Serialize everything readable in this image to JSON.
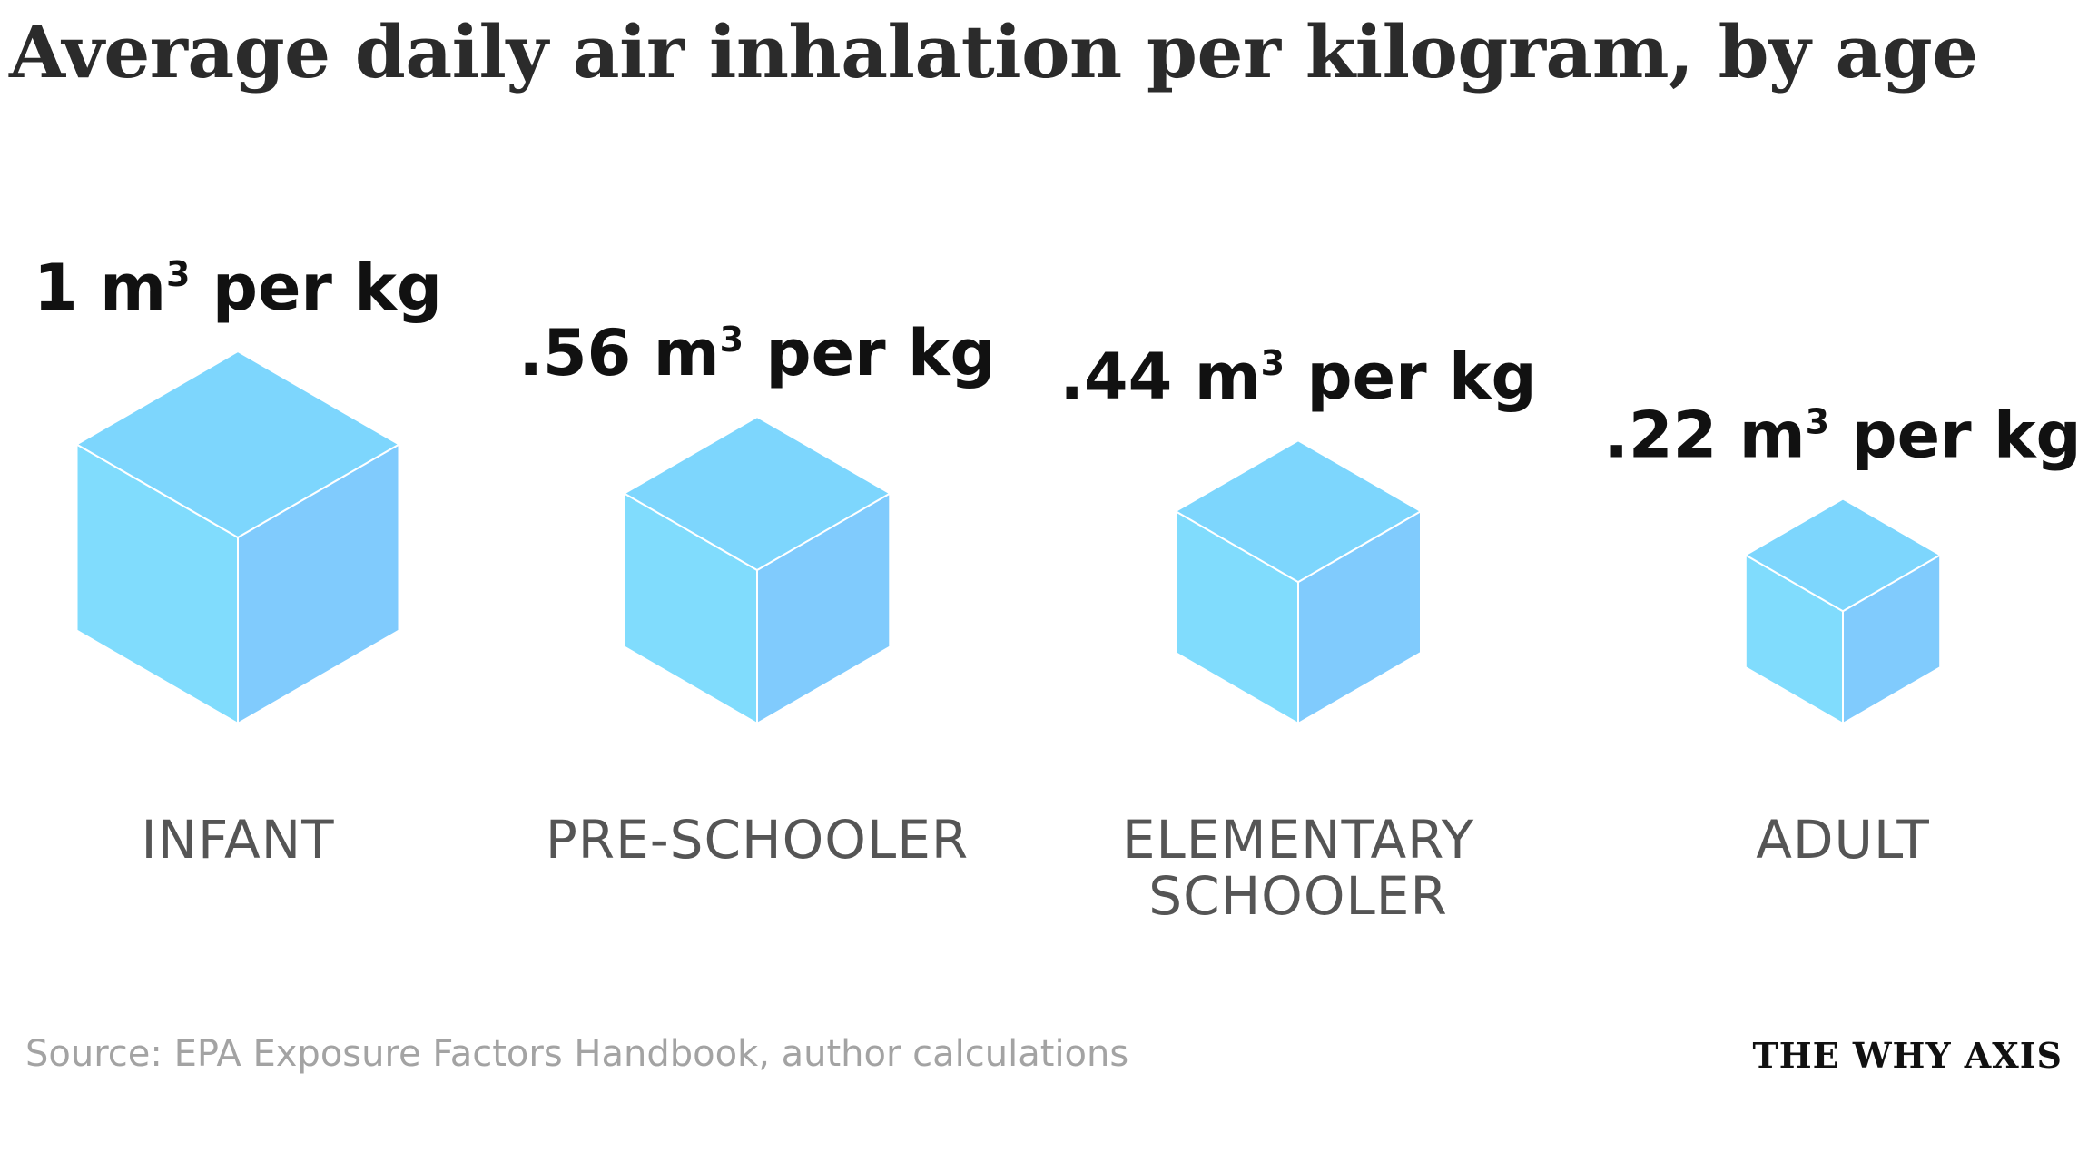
{
  "chart_data": {
    "type": "bar",
    "title": "Average daily air inhalation per kilogram, by age",
    "categories": [
      "INFANT",
      "PRE-SCHOOLER",
      "ELEMENTARY SCHOOLER",
      "ADULT"
    ],
    "category_lines": [
      [
        "INFANT"
      ],
      [
        "PRE-SCHOOLER"
      ],
      [
        "ELEMENTARY",
        "SCHOOLER"
      ],
      [
        "ADULT"
      ]
    ],
    "values": [
      1,
      0.56,
      0.44,
      0.22
    ],
    "value_labels": [
      {
        "main": "1 m",
        "sup": "3",
        "tail": " per kg"
      },
      {
        "main": ".56 m",
        "sup": "3",
        "tail": " per kg"
      },
      {
        "main": ".44 m",
        "sup": "3",
        "tail": " per kg"
      },
      {
        "main": ".22 m",
        "sup": "3",
        "tail": " per kg"
      }
    ],
    "unit": "m³ per kg",
    "marker": "isometric cube (volume proportional to value)",
    "xlabel": "",
    "ylabel": ""
  },
  "source": "Source: EPA Exposure Factors Handbook, author calculations",
  "brand": "THE WHY AXIS",
  "colors": {
    "cube_top": "#7dd6fd",
    "cube_left": "#80dcfd",
    "cube_right": "#80cbfd",
    "cube_edge": "#ffffff",
    "title": "#2b2b2b",
    "value_text": "#111111",
    "category_text": "#555555",
    "source_text": "#a3a3a3"
  }
}
